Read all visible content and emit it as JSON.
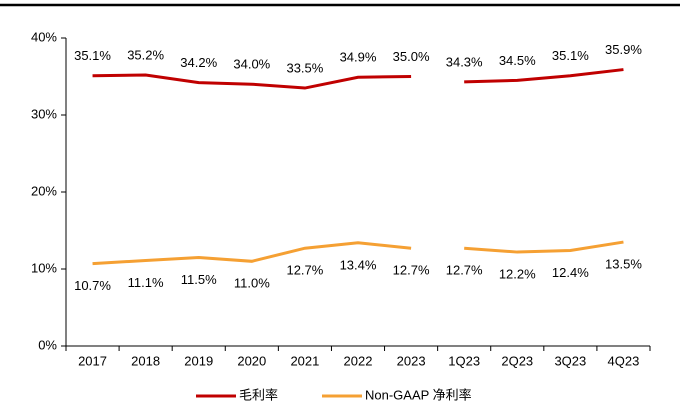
{
  "chart_data": {
    "type": "line",
    "categories": [
      "2017",
      "2018",
      "2019",
      "2020",
      "2021",
      "2022",
      "2023",
      "1Q23",
      "2Q23",
      "3Q23",
      "4Q23"
    ],
    "gap_after_index": 6,
    "series": [
      {
        "name": "毛利率",
        "color": "#c00000",
        "values": [
          35.1,
          35.2,
          34.2,
          34.0,
          33.5,
          34.9,
          35.0,
          34.3,
          34.5,
          35.1,
          35.9
        ],
        "value_labels": [
          "35.1%",
          "35.2%",
          "34.2%",
          "34.0%",
          "33.5%",
          "34.9%",
          "35.0%",
          "34.3%",
          "34.5%",
          "35.1%",
          "35.9%"
        ]
      },
      {
        "name": "Non-GAAP 净利率",
        "color": "#f5a033",
        "values": [
          10.7,
          11.1,
          11.5,
          11.0,
          12.7,
          13.4,
          12.7,
          12.7,
          12.2,
          12.4,
          13.5
        ],
        "value_labels": [
          "10.7%",
          "11.1%",
          "11.5%",
          "11.0%",
          "12.7%",
          "13.4%",
          "12.7%",
          "12.7%",
          "12.2%",
          "12.4%",
          "13.5%"
        ]
      }
    ],
    "ylim": [
      0,
      40
    ],
    "yticks": [
      {
        "value": 0,
        "label": "0%"
      },
      {
        "value": 10,
        "label": "10%"
      },
      {
        "value": 20,
        "label": "20%"
      },
      {
        "value": 30,
        "label": "30%"
      },
      {
        "value": 40,
        "label": "40%"
      }
    ],
    "legend": "bottom"
  }
}
